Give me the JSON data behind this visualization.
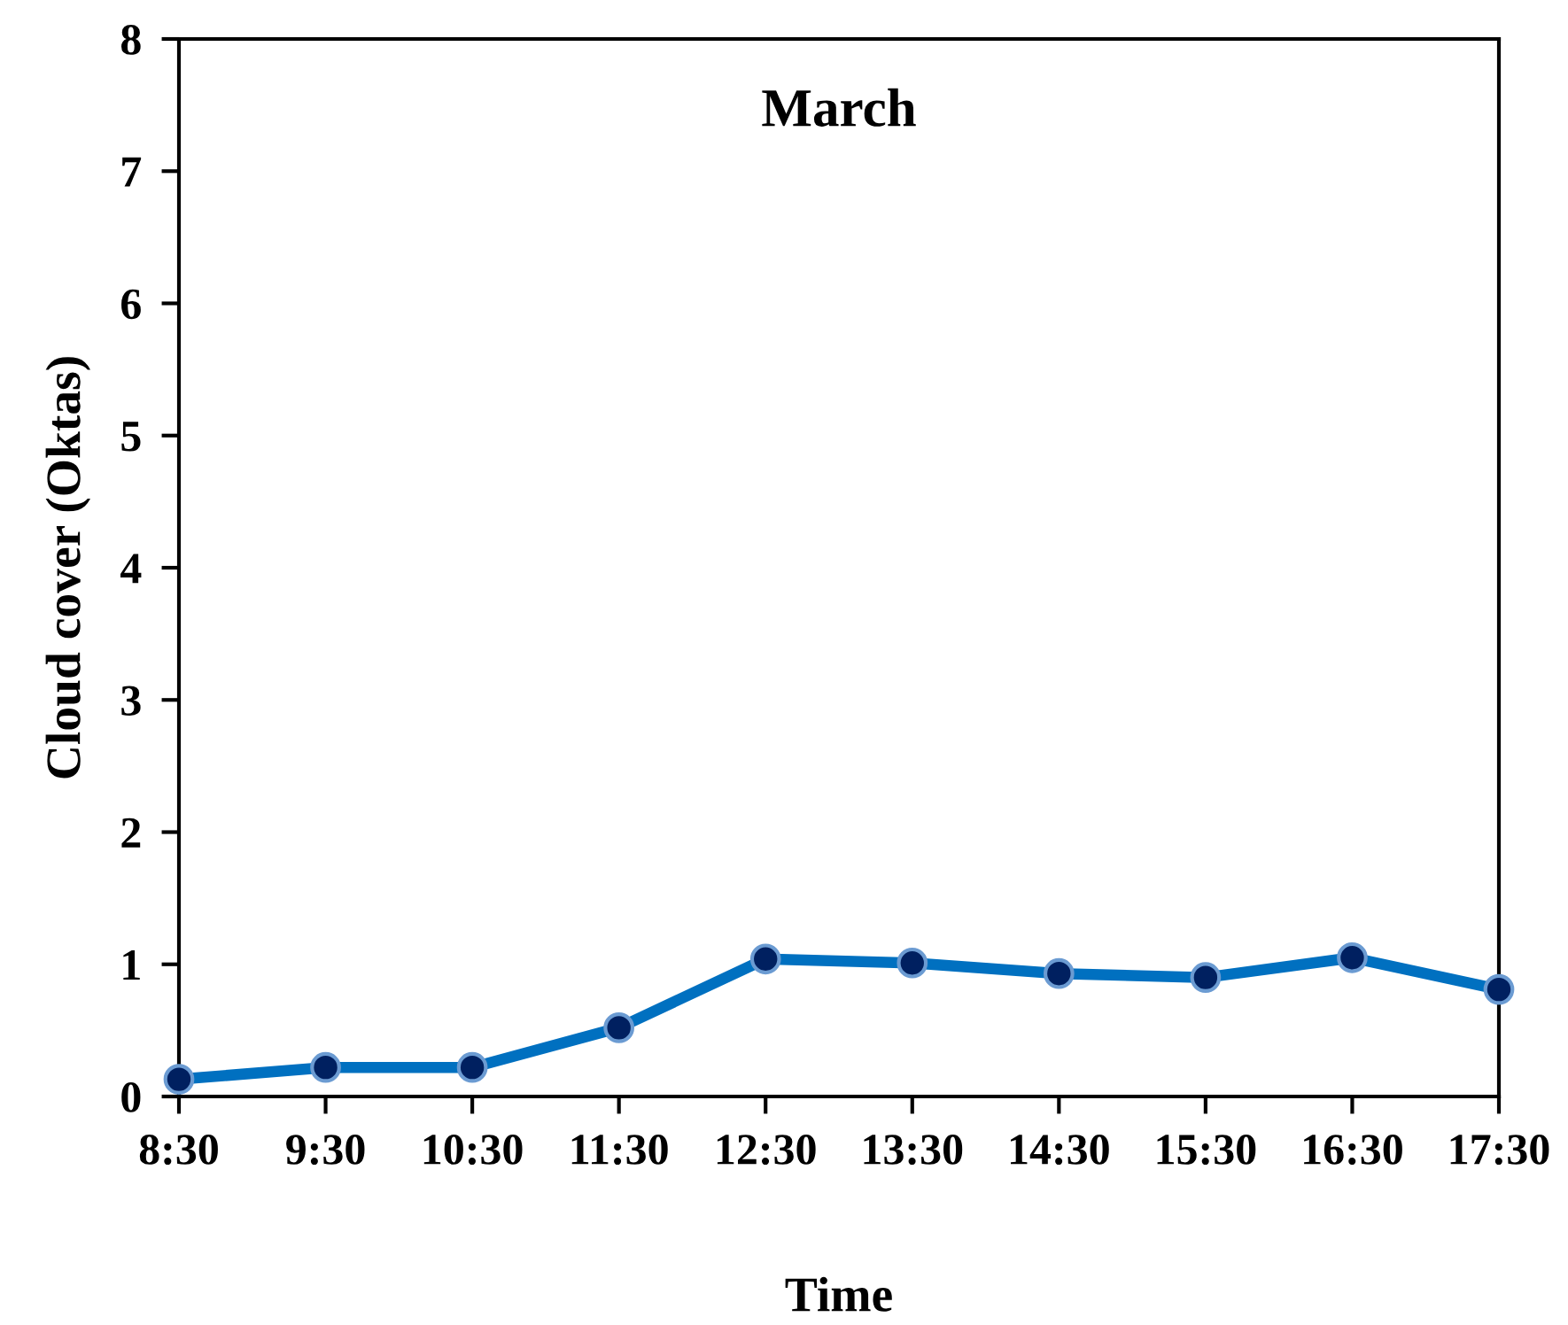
{
  "chart_data": {
    "type": "line",
    "title": "March",
    "xlabel": "Time",
    "ylabel": "Cloud cover (Oktas)",
    "x": [
      8.5,
      9.5,
      10.5,
      11.5,
      12.5,
      13.5,
      14.5,
      15.5,
      16.5,
      17.5
    ],
    "series": [
      {
        "color": "#0070c0",
        "values": [
          0.13,
          0.22,
          0.22,
          0.52,
          1.04,
          1.01,
          0.93,
          0.9,
          1.05,
          0.81
        ]
      }
    ],
    "xlim": [
      8.5,
      17.5
    ],
    "xticks": [
      {
        "value": 8.5,
        "label": "8:30"
      },
      {
        "value": 9.5,
        "label": "9:30"
      },
      {
        "value": 10.5,
        "label": "10:30"
      },
      {
        "value": 11.5,
        "label": "11:30"
      },
      {
        "value": 12.5,
        "label": "12:30"
      },
      {
        "value": 13.5,
        "label": "13:30"
      },
      {
        "value": 14.5,
        "label": "14:30"
      },
      {
        "value": 15.5,
        "label": "15:30"
      },
      {
        "value": 16.5,
        "label": "16:30"
      },
      {
        "value": 17.5,
        "label": "17:30"
      }
    ],
    "ylim": [
      0,
      8
    ],
    "yticks": [
      0,
      1,
      2,
      3,
      4,
      5,
      6,
      7,
      8
    ],
    "marker": "circle",
    "line_style": "solid",
    "grid": false,
    "legend": false
  }
}
